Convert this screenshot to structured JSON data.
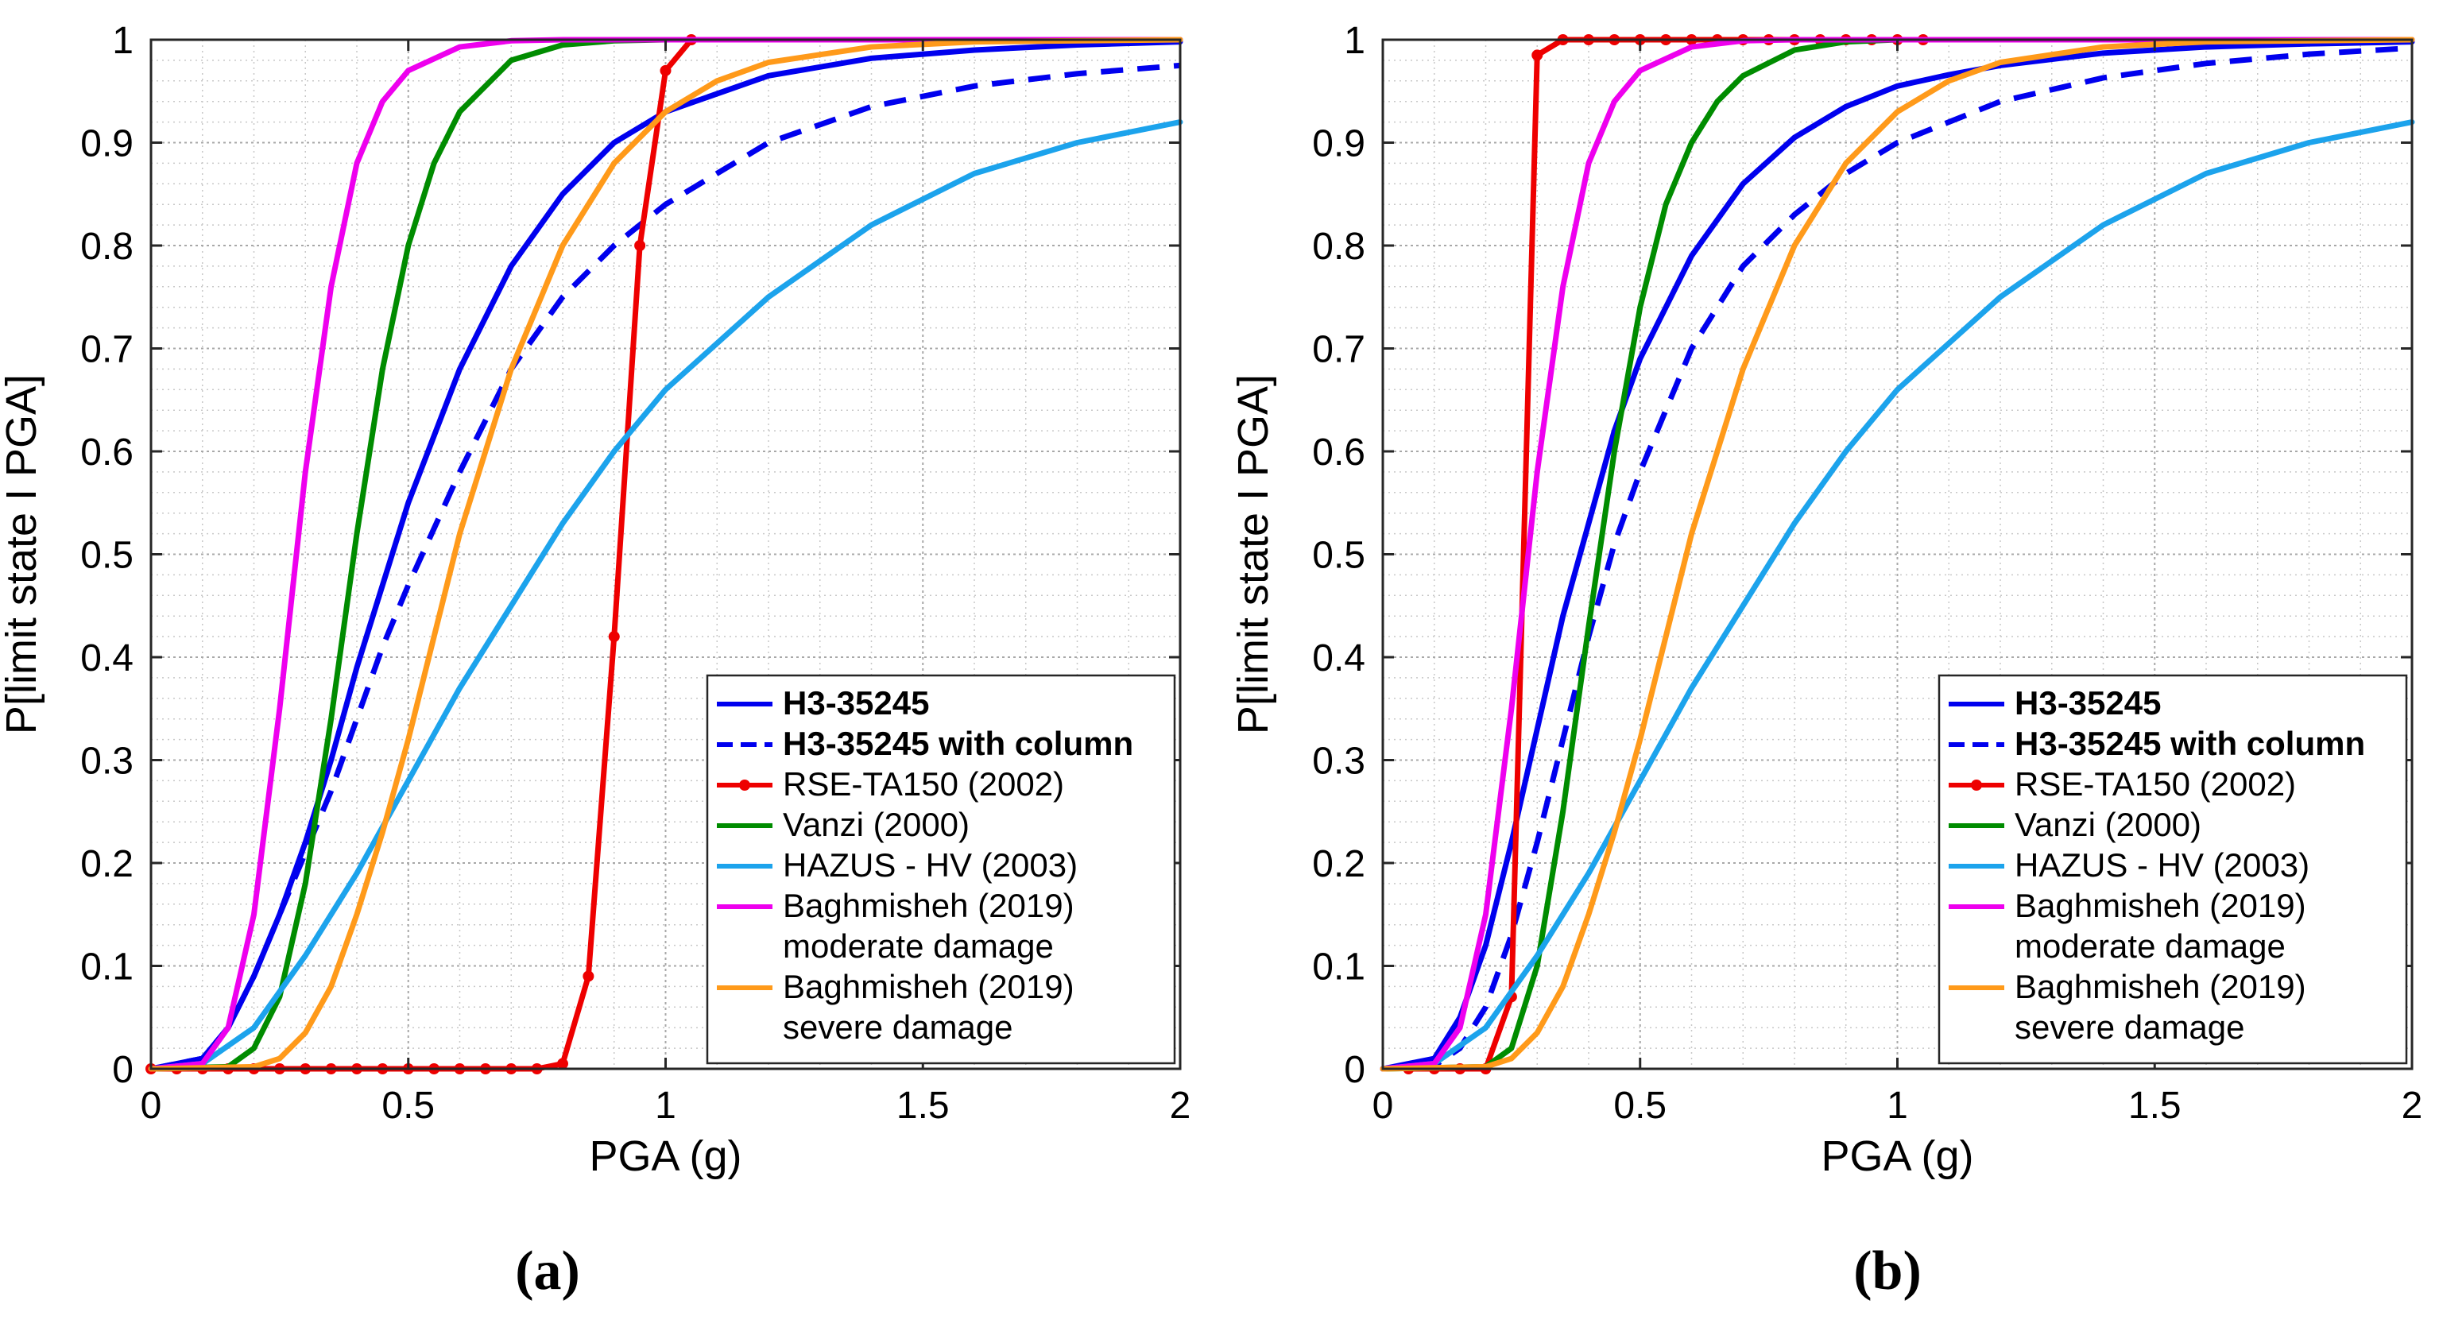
{
  "figure": {
    "captions": [
      "(a)",
      "(b)"
    ]
  },
  "chart_data": [
    {
      "type": "line",
      "panel": "(a)",
      "xlabel": "PGA (g)",
      "ylabel": "P[limit state I PGA]",
      "xlim": [
        0,
        2
      ],
      "ylim": [
        0,
        1
      ],
      "xticks": [
        0,
        0.5,
        1,
        1.5,
        2
      ],
      "yticks": [
        0,
        0.1,
        0.2,
        0.3,
        0.4,
        0.5,
        0.6,
        0.7,
        0.8,
        0.9,
        1
      ],
      "xtick_labels": [
        "0",
        "0.5",
        "1",
        "1.5",
        "2"
      ],
      "ytick_labels": [
        "0",
        "0.1",
        "0.2",
        "0.3",
        "0.4",
        "0.5",
        "0.6",
        "0.7",
        "0.8",
        "0.9",
        "1"
      ],
      "grid": "major and minor",
      "legend_position": "bottom-right",
      "series": [
        {
          "name": "H3-35245",
          "color": "#0000ee",
          "style": "solid",
          "bold": true,
          "x": [
            0,
            0.1,
            0.15,
            0.2,
            0.25,
            0.3,
            0.35,
            0.4,
            0.45,
            0.5,
            0.6,
            0.7,
            0.8,
            0.9,
            1.0,
            1.2,
            1.4,
            1.6,
            1.8,
            2.0
          ],
          "y": [
            0,
            0.01,
            0.04,
            0.09,
            0.15,
            0.22,
            0.3,
            0.39,
            0.47,
            0.55,
            0.68,
            0.78,
            0.85,
            0.9,
            0.93,
            0.965,
            0.982,
            0.99,
            0.995,
            0.998
          ]
        },
        {
          "name": "H3-35245 with column",
          "color": "#0000ee",
          "style": "dashed",
          "bold": true,
          "x": [
            0,
            0.1,
            0.15,
            0.2,
            0.25,
            0.3,
            0.35,
            0.4,
            0.45,
            0.5,
            0.6,
            0.7,
            0.8,
            0.9,
            1.0,
            1.2,
            1.4,
            1.6,
            1.8,
            2.0
          ],
          "y": [
            0,
            0.01,
            0.04,
            0.09,
            0.15,
            0.21,
            0.27,
            0.34,
            0.41,
            0.47,
            0.58,
            0.68,
            0.75,
            0.8,
            0.84,
            0.9,
            0.935,
            0.955,
            0.967,
            0.975
          ]
        },
        {
          "name": "RSE-TA150 (2002)",
          "color": "#ee0000",
          "style": "solid-marker",
          "bold": false,
          "x": [
            0,
            0.05,
            0.1,
            0.15,
            0.2,
            0.25,
            0.3,
            0.35,
            0.4,
            0.45,
            0.5,
            0.55,
            0.6,
            0.65,
            0.7,
            0.75,
            0.8,
            0.85,
            0.9,
            0.95,
            1.0,
            1.05
          ],
          "y": [
            0,
            0,
            0,
            0,
            0,
            0,
            0,
            0,
            0,
            0,
            0,
            0,
            0,
            0,
            0,
            0,
            0.005,
            0.09,
            0.42,
            0.8,
            0.97,
            1.0
          ]
        },
        {
          "name": "Vanzi (2000)",
          "color": "#008c00",
          "style": "solid",
          "bold": false,
          "x": [
            0,
            0.15,
            0.2,
            0.25,
            0.3,
            0.35,
            0.4,
            0.45,
            0.5,
            0.55,
            0.6,
            0.7,
            0.8,
            0.9,
            1.0,
            2.0
          ],
          "y": [
            0,
            0.002,
            0.02,
            0.07,
            0.18,
            0.34,
            0.52,
            0.68,
            0.8,
            0.88,
            0.93,
            0.98,
            0.995,
            0.999,
            1.0,
            1.0
          ]
        },
        {
          "name": "HAZUS - HV (2003)",
          "color": "#1ca3ec",
          "style": "solid",
          "bold": false,
          "x": [
            0,
            0.1,
            0.2,
            0.3,
            0.4,
            0.5,
            0.6,
            0.7,
            0.8,
            0.9,
            1.0,
            1.2,
            1.4,
            1.6,
            1.8,
            2.0
          ],
          "y": [
            0,
            0.005,
            0.04,
            0.11,
            0.19,
            0.28,
            0.37,
            0.45,
            0.53,
            0.6,
            0.66,
            0.75,
            0.82,
            0.87,
            0.9,
            0.92
          ]
        },
        {
          "name": "Baghmisheh (2019) moderate damage",
          "label_lines": [
            "Baghmisheh (2019)",
            "moderate damage"
          ],
          "color": "#ee00ee",
          "style": "solid",
          "bold": false,
          "x": [
            0,
            0.1,
            0.15,
            0.2,
            0.25,
            0.3,
            0.35,
            0.4,
            0.45,
            0.5,
            0.6,
            0.7,
            0.8,
            2.0
          ],
          "y": [
            0,
            0.005,
            0.04,
            0.15,
            0.35,
            0.58,
            0.76,
            0.88,
            0.94,
            0.97,
            0.993,
            0.999,
            1.0,
            1.0
          ]
        },
        {
          "name": "Baghmisheh (2019) severe damage",
          "label_lines": [
            "Baghmisheh (2019)",
            "severe damage"
          ],
          "color": "#ff9a1a",
          "style": "solid",
          "bold": false,
          "x": [
            0,
            0.2,
            0.25,
            0.3,
            0.35,
            0.4,
            0.45,
            0.5,
            0.55,
            0.6,
            0.7,
            0.8,
            0.9,
            1.0,
            1.1,
            1.2,
            1.4,
            1.6,
            2.0
          ],
          "y": [
            0,
            0.002,
            0.01,
            0.035,
            0.08,
            0.15,
            0.23,
            0.32,
            0.42,
            0.52,
            0.68,
            0.8,
            0.88,
            0.93,
            0.96,
            0.978,
            0.993,
            0.998,
            1.0
          ]
        }
      ]
    },
    {
      "type": "line",
      "panel": "(b)",
      "xlabel": "PGA (g)",
      "ylabel": "P[limit state I PGA]",
      "xlim": [
        0,
        2
      ],
      "ylim": [
        0,
        1
      ],
      "xticks": [
        0,
        0.5,
        1,
        1.5,
        2
      ],
      "yticks": [
        0,
        0.1,
        0.2,
        0.3,
        0.4,
        0.5,
        0.6,
        0.7,
        0.8,
        0.9,
        1
      ],
      "xtick_labels": [
        "0",
        "0.5",
        "1",
        "1.5",
        "2"
      ],
      "ytick_labels": [
        "0",
        "0.1",
        "0.2",
        "0.3",
        "0.4",
        "0.5",
        "0.6",
        "0.7",
        "0.8",
        "0.9",
        "1"
      ],
      "grid": "major and minor",
      "legend_position": "bottom-right",
      "series": [
        {
          "name": "H3-35245",
          "color": "#0000ee",
          "style": "solid",
          "bold": true,
          "x": [
            0,
            0.1,
            0.15,
            0.2,
            0.25,
            0.3,
            0.35,
            0.4,
            0.45,
            0.5,
            0.6,
            0.7,
            0.8,
            0.9,
            1.0,
            1.1,
            1.2,
            1.4,
            1.6,
            1.8,
            2.0
          ],
          "y": [
            0,
            0.01,
            0.05,
            0.12,
            0.22,
            0.33,
            0.44,
            0.53,
            0.62,
            0.69,
            0.79,
            0.86,
            0.905,
            0.935,
            0.955,
            0.966,
            0.975,
            0.987,
            0.993,
            0.996,
            0.998
          ]
        },
        {
          "name": "H3-35245 with column",
          "color": "#0000ee",
          "style": "dashed",
          "bold": true,
          "x": [
            0,
            0.1,
            0.15,
            0.2,
            0.25,
            0.3,
            0.35,
            0.4,
            0.45,
            0.5,
            0.6,
            0.7,
            0.8,
            0.9,
            1.0,
            1.2,
            1.4,
            1.6,
            1.8,
            2.0
          ],
          "y": [
            0,
            0.003,
            0.02,
            0.06,
            0.13,
            0.22,
            0.32,
            0.42,
            0.51,
            0.58,
            0.7,
            0.78,
            0.83,
            0.87,
            0.9,
            0.94,
            0.963,
            0.977,
            0.986,
            0.992
          ]
        },
        {
          "name": "RSE-TA150 (2002)",
          "color": "#ee0000",
          "style": "solid-marker",
          "bold": false,
          "x": [
            0.05,
            0.1,
            0.15,
            0.2,
            0.25,
            0.3,
            0.35,
            0.4,
            0.45,
            0.5,
            0.55,
            0.6,
            0.65,
            0.7,
            0.75,
            0.8,
            0.85,
            0.9,
            0.95,
            1.0,
            1.05
          ],
          "y": [
            0,
            0,
            0,
            0,
            0.07,
            0.985,
            1,
            1,
            1,
            1,
            1,
            1,
            1,
            1,
            1,
            1,
            1,
            1,
            1,
            1,
            1
          ]
        },
        {
          "name": "Vanzi (2000)",
          "color": "#008c00",
          "style": "solid",
          "bold": false,
          "x": [
            0,
            0.2,
            0.25,
            0.3,
            0.35,
            0.4,
            0.45,
            0.5,
            0.55,
            0.6,
            0.65,
            0.7,
            0.8,
            0.9,
            1.0,
            2.0
          ],
          "y": [
            0,
            0.002,
            0.02,
            0.1,
            0.25,
            0.43,
            0.6,
            0.74,
            0.84,
            0.9,
            0.94,
            0.965,
            0.99,
            0.998,
            1.0,
            1.0
          ]
        },
        {
          "name": "HAZUS - HV (2003)",
          "color": "#1ca3ec",
          "style": "solid",
          "bold": false,
          "x": [
            0,
            0.1,
            0.2,
            0.3,
            0.4,
            0.5,
            0.6,
            0.7,
            0.8,
            0.9,
            1.0,
            1.2,
            1.4,
            1.6,
            1.8,
            2.0
          ],
          "y": [
            0,
            0.005,
            0.04,
            0.11,
            0.19,
            0.28,
            0.37,
            0.45,
            0.53,
            0.6,
            0.66,
            0.75,
            0.82,
            0.87,
            0.9,
            0.92
          ]
        },
        {
          "name": "Baghmisheh (2019) moderate damage",
          "label_lines": [
            "Baghmisheh (2019)",
            "moderate damage"
          ],
          "color": "#ee00ee",
          "style": "solid",
          "bold": false,
          "x": [
            0,
            0.1,
            0.15,
            0.2,
            0.25,
            0.3,
            0.35,
            0.4,
            0.45,
            0.5,
            0.6,
            0.7,
            0.8,
            2.0
          ],
          "y": [
            0,
            0.005,
            0.04,
            0.15,
            0.35,
            0.58,
            0.76,
            0.88,
            0.94,
            0.97,
            0.993,
            0.999,
            1.0,
            1.0
          ]
        },
        {
          "name": "Baghmisheh (2019) severe damage",
          "label_lines": [
            "Baghmisheh (2019)",
            "severe damage"
          ],
          "color": "#ff9a1a",
          "style": "solid",
          "bold": false,
          "x": [
            0,
            0.2,
            0.25,
            0.3,
            0.35,
            0.4,
            0.45,
            0.5,
            0.55,
            0.6,
            0.7,
            0.8,
            0.9,
            1.0,
            1.1,
            1.2,
            1.4,
            1.6,
            2.0
          ],
          "y": [
            0,
            0.002,
            0.01,
            0.035,
            0.08,
            0.15,
            0.23,
            0.32,
            0.42,
            0.52,
            0.68,
            0.8,
            0.88,
            0.93,
            0.96,
            0.978,
            0.993,
            0.998,
            1.0
          ]
        }
      ]
    }
  ]
}
